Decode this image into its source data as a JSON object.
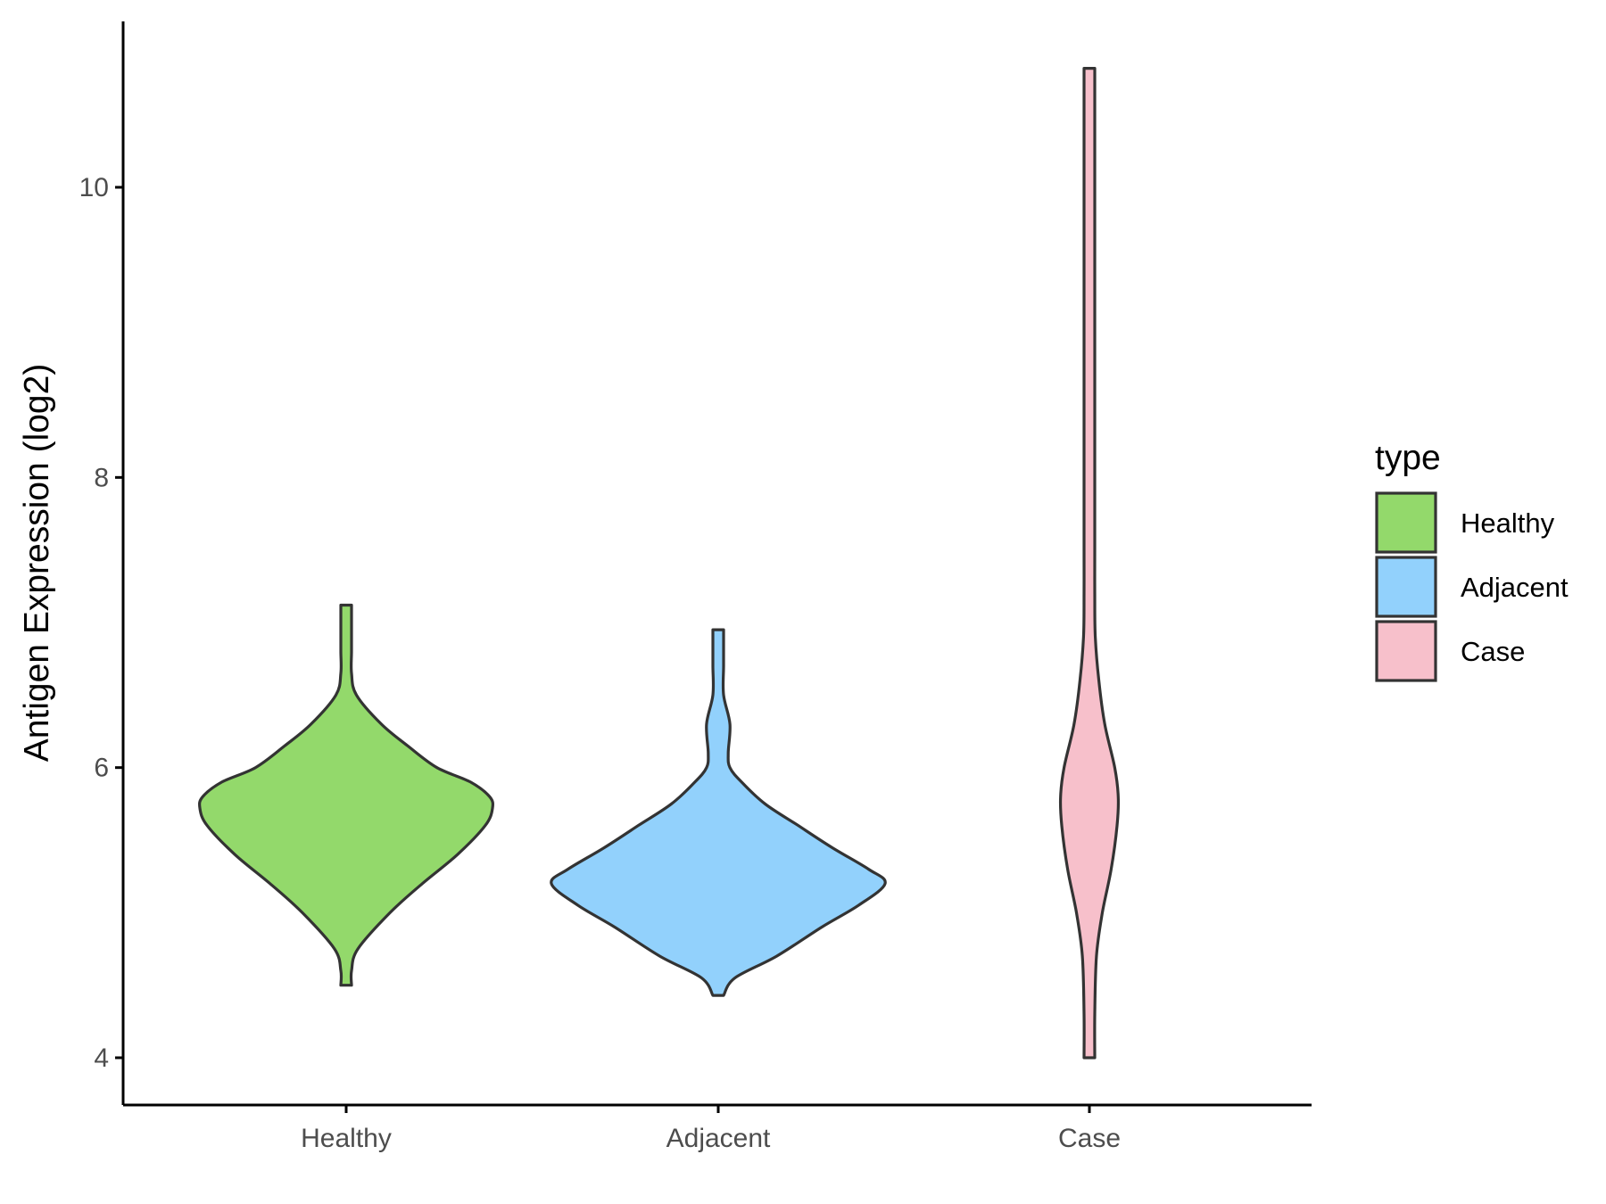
{
  "chart_data": {
    "type": "violin",
    "ylabel": "Antigen Expression (log2)",
    "xlabel": "",
    "ylim": [
      3.8,
      11.2
    ],
    "yticks": [
      4,
      6,
      8,
      10
    ],
    "grid": false,
    "legend": {
      "title": "type",
      "position": "right",
      "items": [
        "Healthy",
        "Adjacent",
        "Case"
      ]
    },
    "categories": [
      "Healthy",
      "Adjacent",
      "Case"
    ],
    "series": [
      {
        "name": "Healthy",
        "color": "#93d96b",
        "min": 4.5,
        "max": 7.12,
        "density": [
          [
            4.5,
            0.01
          ],
          [
            4.6,
            0.03
          ],
          [
            4.75,
            0.08
          ],
          [
            5.0,
            0.3
          ],
          [
            5.2,
            0.52
          ],
          [
            5.4,
            0.76
          ],
          [
            5.6,
            0.95
          ],
          [
            5.72,
            1.0
          ],
          [
            5.8,
            0.98
          ],
          [
            5.9,
            0.85
          ],
          [
            6.0,
            0.62
          ],
          [
            6.15,
            0.42
          ],
          [
            6.3,
            0.24
          ],
          [
            6.5,
            0.07
          ],
          [
            6.65,
            0.02
          ],
          [
            6.8,
            0.01
          ],
          [
            6.95,
            0.015
          ],
          [
            7.05,
            0.02
          ],
          [
            7.12,
            0.0
          ]
        ]
      },
      {
        "name": "Adjacent",
        "color": "#92d1fc",
        "min": 4.43,
        "max": 6.95,
        "density": [
          [
            4.43,
            0.01
          ],
          [
            4.55,
            0.1
          ],
          [
            4.7,
            0.35
          ],
          [
            4.9,
            0.62
          ],
          [
            5.05,
            0.84
          ],
          [
            5.2,
            1.0
          ],
          [
            5.3,
            0.9
          ],
          [
            5.45,
            0.68
          ],
          [
            5.6,
            0.48
          ],
          [
            5.75,
            0.28
          ],
          [
            5.9,
            0.14
          ],
          [
            6.0,
            0.07
          ],
          [
            6.1,
            0.06
          ],
          [
            6.3,
            0.07
          ],
          [
            6.5,
            0.03
          ],
          [
            6.7,
            0.01
          ],
          [
            6.85,
            0.015
          ],
          [
            6.95,
            0.0
          ]
        ]
      },
      {
        "name": "Case",
        "color": "#f7c0cb",
        "min": 4.0,
        "max": 10.82,
        "density": [
          [
            4.0,
            0.01
          ],
          [
            4.3,
            0.04
          ],
          [
            4.7,
            0.12
          ],
          [
            5.0,
            0.22
          ],
          [
            5.3,
            0.37
          ],
          [
            5.6,
            0.47
          ],
          [
            5.8,
            0.49
          ],
          [
            6.0,
            0.43
          ],
          [
            6.3,
            0.26
          ],
          [
            6.6,
            0.16
          ],
          [
            6.9,
            0.1
          ],
          [
            7.2,
            0.08
          ],
          [
            7.5,
            0.07
          ],
          [
            7.9,
            0.055
          ],
          [
            8.4,
            0.04
          ],
          [
            9.0,
            0.025
          ],
          [
            9.5,
            0.02
          ],
          [
            10.0,
            0.015
          ],
          [
            10.5,
            0.008
          ],
          [
            10.82,
            0.0
          ]
        ]
      }
    ]
  }
}
